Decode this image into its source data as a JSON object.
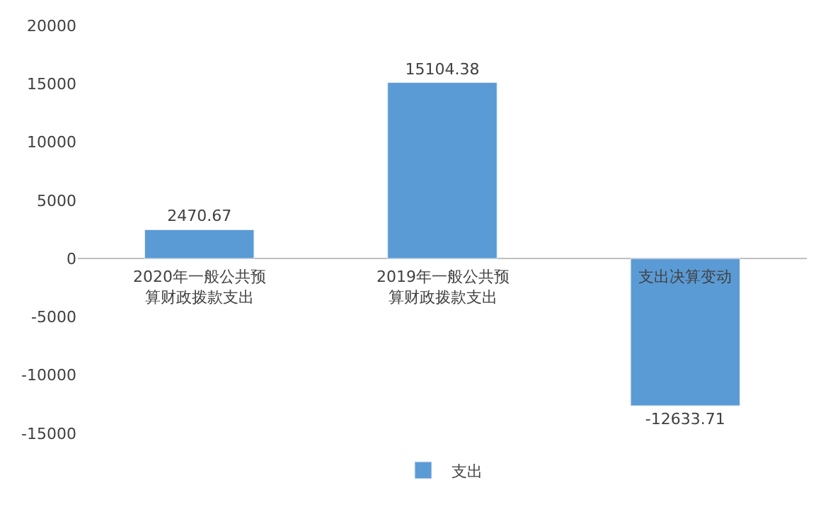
{
  "chart_data": {
    "type": "bar",
    "categories": [
      "2020年一般公共预算财政拨款支出",
      "2019年一般公共预算财政拨款支出",
      "支出决算变动"
    ],
    "series": [
      {
        "name": "支出",
        "color": "#5b9bd5",
        "values": [
          2470.67,
          15104.38,
          -12633.71
        ]
      }
    ],
    "ylim": [
      -15000,
      20000
    ],
    "yticks": [
      -15000,
      -10000,
      -5000,
      0,
      5000,
      10000,
      15000,
      20000
    ],
    "data_labels": true,
    "legend": "bottom"
  }
}
